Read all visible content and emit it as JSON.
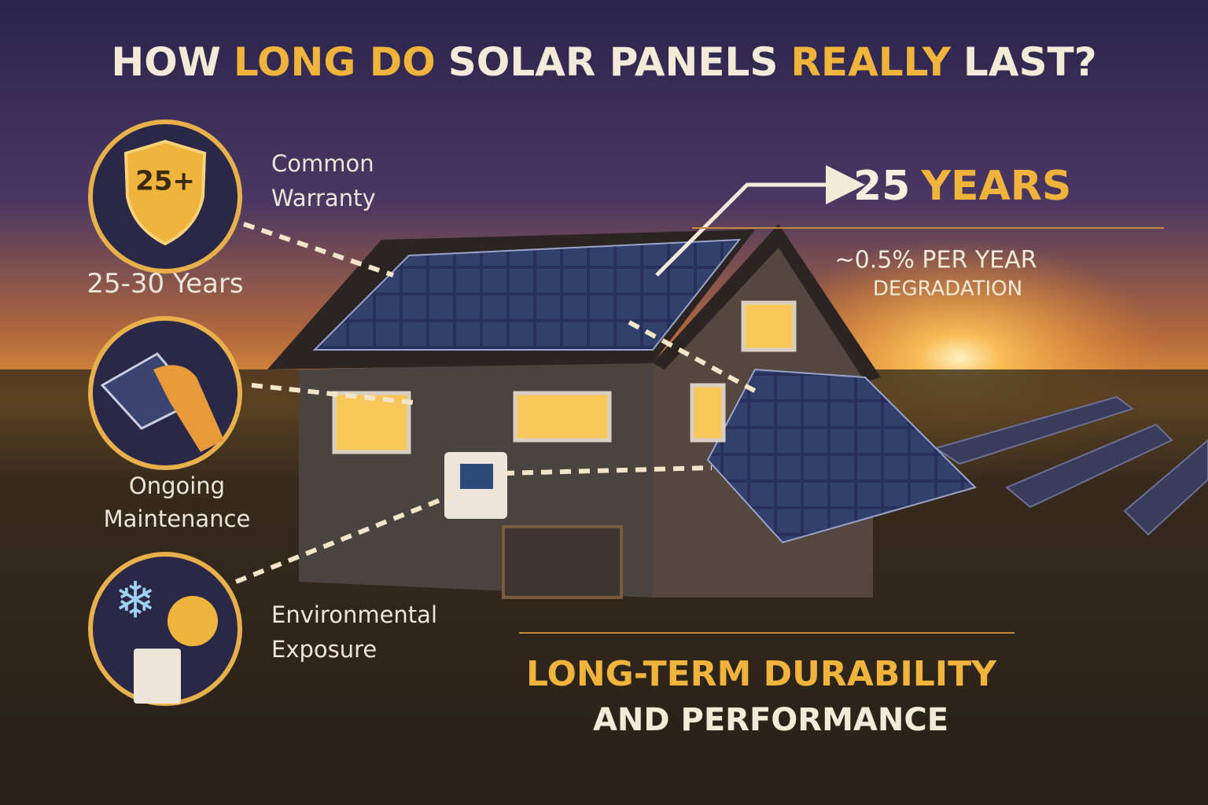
{
  "title": {
    "parts": [
      {
        "text": "HOW",
        "color": "#f3ead8"
      },
      {
        "text": "LONG DO",
        "color": "#f0b43c"
      },
      {
        "text": "SOLAR PANELS",
        "color": "#f3ead8"
      },
      {
        "text": "REALLY",
        "color": "#f0b43c"
      },
      {
        "text": "LAST?",
        "color": "#f3ead8"
      }
    ]
  },
  "badge": "25+",
  "features": [
    {
      "label_lines": [
        "Common",
        "Warranty"
      ],
      "value": "25-30 Years"
    },
    {
      "label_lines": [
        "Ongoing",
        "Maintenance"
      ]
    },
    {
      "label_lines": [
        "Environmental",
        "Exposure"
      ]
    }
  ],
  "lifespan": {
    "parts": [
      {
        "text": "25",
        "color": "#f6efe0"
      },
      {
        "text": "YEARS",
        "color": "#f0b43c"
      }
    ],
    "note_lines": [
      "~0.5% PER YEAR",
      "DEGRADATION"
    ]
  },
  "footer": {
    "lines": [
      "LONG-TERM DURABILITY",
      "AND PERFORMANCE"
    ]
  }
}
